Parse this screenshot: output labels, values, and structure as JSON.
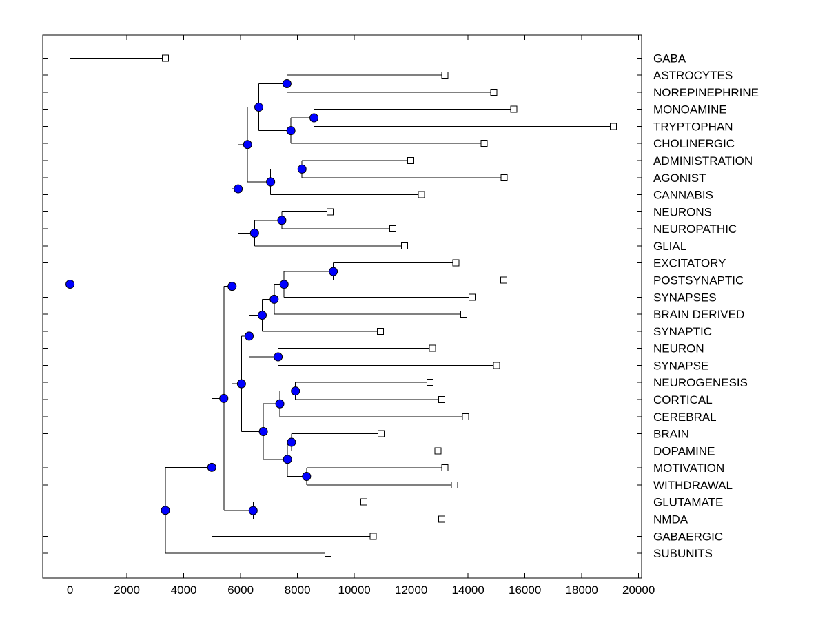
{
  "figure": {
    "background": "#ffffff",
    "title": ""
  },
  "chart_data": {
    "type": "dendrogram",
    "orientation": "left-to-right",
    "title": "",
    "xlabel": "",
    "ylabel": "",
    "x_axis": {
      "min": -960,
      "max": 20105,
      "ticks": [
        0,
        2000,
        4000,
        6000,
        8000,
        10000,
        12000,
        14000,
        16000,
        18000,
        20000
      ],
      "tick_labels": [
        "0",
        "2000",
        "4000",
        "6000",
        "8000",
        "10000",
        "12000",
        "14000",
        "16000",
        "18000",
        "20000"
      ]
    },
    "grid": false,
    "legend": null,
    "styles": {
      "line_color": "#000000",
      "branch_node_fill": "#0000ff",
      "branch_node_edge": "#000000",
      "leaf_marker_fill": "#ffffff",
      "leaf_marker_edge": "#000000",
      "label_color": "#000000"
    },
    "leaf_order": [
      {
        "name": "GABA",
        "distance": 3355
      },
      {
        "name": "ASTROCYTES",
        "distance": 13180
      },
      {
        "name": "NOREPINEPHRINE",
        "distance": 14900
      },
      {
        "name": "MONOAMINE",
        "distance": 15610
      },
      {
        "name": "TRYPTOPHAN",
        "distance": 19110
      },
      {
        "name": "CHOLINERGIC",
        "distance": 14570
      },
      {
        "name": "ADMINISTRATION",
        "distance": 11980
      },
      {
        "name": "AGONIST",
        "distance": 15270
      },
      {
        "name": "CANNABIS",
        "distance": 12360
      },
      {
        "name": "NEURONS",
        "distance": 9150
      },
      {
        "name": "NEUROPATHIC",
        "distance": 11350
      },
      {
        "name": "GLIAL",
        "distance": 11770
      },
      {
        "name": "EXCITATORY",
        "distance": 13570
      },
      {
        "name": "POSTSYNAPTIC",
        "distance": 15260
      },
      {
        "name": "SYNAPSES",
        "distance": 14140
      },
      {
        "name": "BRAIN DERIVED",
        "distance": 13850
      },
      {
        "name": "SYNAPTIC",
        "distance": 10920
      },
      {
        "name": "NEURON",
        "distance": 12750
      },
      {
        "name": "SYNAPSE",
        "distance": 15000
      },
      {
        "name": "NEUROGENESIS",
        "distance": 12660
      },
      {
        "name": "CORTICAL",
        "distance": 13080
      },
      {
        "name": "CEREBRAL",
        "distance": 13910
      },
      {
        "name": "BRAIN",
        "distance": 10940
      },
      {
        "name": "DOPAMINE",
        "distance": 12940
      },
      {
        "name": "MOTIVATION",
        "distance": 13190
      },
      {
        "name": "WITHDRAWAL",
        "distance": 13520
      },
      {
        "name": "GLUTAMATE",
        "distance": 10340
      },
      {
        "name": "NMDA",
        "distance": 13070
      },
      {
        "name": "GABAERGIC",
        "distance": 10660
      },
      {
        "name": "SUBUNITS",
        "distance": 9070
      }
    ],
    "tree": {
      "distance": 0,
      "children": [
        {
          "name": "GABA",
          "distance": 3355
        },
        {
          "distance": 3355,
          "children": [
            {
              "distance": 4985,
              "children": [
                {
                  "distance": 5410,
                  "children": [
                    {
                      "distance": 5700,
                      "children": [
                        {
                          "distance": 5915,
                          "children": [
                            {
                              "distance": 6245,
                              "children": [
                                {
                                  "distance": 6640,
                                  "children": [
                                    {
                                      "distance": 7630,
                                      "children": [
                                        {
                                          "name": "ASTROCYTES",
                                          "distance": 13180
                                        },
                                        {
                                          "name": "NOREPINEPHRINE",
                                          "distance": 14900
                                        }
                                      ]
                                    },
                                    {
                                      "distance": 7770,
                                      "children": [
                                        {
                                          "distance": 8580,
                                          "children": [
                                            {
                                              "name": "MONOAMINE",
                                              "distance": 15610
                                            },
                                            {
                                              "name": "TRYPTOPHAN",
                                              "distance": 19110
                                            }
                                          ]
                                        },
                                        {
                                          "name": "CHOLINERGIC",
                                          "distance": 14570
                                        }
                                      ]
                                    }
                                  ]
                                },
                                {
                                  "distance": 7055,
                                  "children": [
                                    {
                                      "distance": 8160,
                                      "children": [
                                        {
                                          "name": "ADMINISTRATION",
                                          "distance": 11980
                                        },
                                        {
                                          "name": "AGONIST",
                                          "distance": 15270
                                        }
                                      ]
                                    },
                                    {
                                      "name": "CANNABIS",
                                      "distance": 12360
                                    }
                                  ]
                                }
                              ]
                            },
                            {
                              "distance": 6490,
                              "children": [
                                {
                                  "distance": 7450,
                                  "children": [
                                    {
                                      "name": "NEURONS",
                                      "distance": 9150
                                    },
                                    {
                                      "name": "NEUROPATHIC",
                                      "distance": 11350
                                    }
                                  ]
                                },
                                {
                                  "name": "GLIAL",
                                  "distance": 11770
                                }
                              ]
                            }
                          ]
                        },
                        {
                          "distance": 6030,
                          "children": [
                            {
                              "distance": 6300,
                              "children": [
                                {
                                  "distance": 6760,
                                  "children": [
                                    {
                                      "distance": 7180,
                                      "children": [
                                        {
                                          "distance": 7530,
                                          "children": [
                                            {
                                              "distance": 9260,
                                              "children": [
                                                {
                                                  "name": "EXCITATORY",
                                                  "distance": 13570
                                                },
                                                {
                                                  "name": "POSTSYNAPTIC",
                                                  "distance": 15260
                                                }
                                              ]
                                            },
                                            {
                                              "name": "SYNAPSES",
                                              "distance": 14140
                                            }
                                          ]
                                        },
                                        {
                                          "name": "BRAIN DERIVED",
                                          "distance": 13850
                                        }
                                      ]
                                    },
                                    {
                                      "name": "SYNAPTIC",
                                      "distance": 10920
                                    }
                                  ]
                                },
                                {
                                  "distance": 7320,
                                  "children": [
                                    {
                                      "name": "NEURON",
                                      "distance": 12750
                                    },
                                    {
                                      "name": "SYNAPSE",
                                      "distance": 15000
                                    }
                                  ]
                                }
                              ]
                            },
                            {
                              "distance": 6800,
                              "children": [
                                {
                                  "distance": 7380,
                                  "children": [
                                    {
                                      "distance": 7930,
                                      "children": [
                                        {
                                          "name": "NEUROGENESIS",
                                          "distance": 12660
                                        },
                                        {
                                          "name": "CORTICAL",
                                          "distance": 13080
                                        }
                                      ]
                                    },
                                    {
                                      "name": "CEREBRAL",
                                      "distance": 13910
                                    }
                                  ]
                                },
                                {
                                  "distance": 7650,
                                  "children": [
                                    {
                                      "distance": 7790,
                                      "children": [
                                        {
                                          "name": "BRAIN",
                                          "distance": 10940
                                        },
                                        {
                                          "name": "DOPAMINE",
                                          "distance": 12940
                                        }
                                      ]
                                    },
                                    {
                                      "distance": 8320,
                                      "children": [
                                        {
                                          "name": "MOTIVATION",
                                          "distance": 13190
                                        },
                                        {
                                          "name": "WITHDRAWAL",
                                          "distance": 13520
                                        }
                                      ]
                                    }
                                  ]
                                }
                              ]
                            }
                          ]
                        }
                      ]
                    },
                    {
                      "distance": 6440,
                      "children": [
                        {
                          "name": "GLUTAMATE",
                          "distance": 10340
                        },
                        {
                          "name": "NMDA",
                          "distance": 13070
                        }
                      ]
                    }
                  ]
                },
                {
                  "name": "GABAERGIC",
                  "distance": 10660
                }
              ]
            },
            {
              "name": "SUBUNITS",
              "distance": 9070
            }
          ]
        }
      ]
    }
  }
}
